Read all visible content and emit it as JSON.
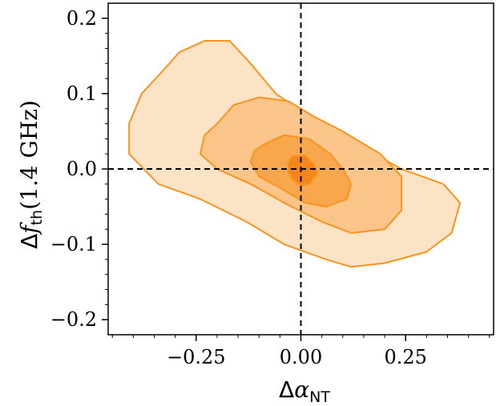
{
  "chart_data": {
    "type": "contour",
    "xlabel": {
      "prefix": "Δ",
      "symbol": "α",
      "subscript": "NT"
    },
    "ylabel": {
      "prefix": "Δ",
      "symbol": "f",
      "subscript": "th",
      "suffix": "(1.4 GHz)"
    },
    "xlim": [
      -0.46,
      0.46
    ],
    "ylim": [
      -0.22,
      0.22
    ],
    "xticks": [
      -0.25,
      0.0,
      0.25
    ],
    "xtick_labels": [
      "−0.25",
      "0.00",
      "0.25"
    ],
    "yticks": [
      -0.2,
      -0.1,
      0.0,
      0.1,
      0.2
    ],
    "ytick_labels": [
      "−0.2",
      "−0.1",
      "0.0",
      "0.1",
      "0.2"
    ],
    "reference_lines": {
      "x": 0.0,
      "y": 0.0,
      "style": "dashed"
    },
    "colors": {
      "line": "#f7941d",
      "fill_outer": "#fde3c6",
      "fill_mid": "#fbc58a",
      "fill_inner": "#f9a74d",
      "fill_core": "#f7861a",
      "refline": "#000000"
    },
    "contours": [
      {
        "level": 1,
        "points": [
          [
            -0.33,
            0.13
          ],
          [
            -0.29,
            0.155
          ],
          [
            -0.23,
            0.17
          ],
          [
            -0.17,
            0.17
          ],
          [
            -0.12,
            0.14
          ],
          [
            -0.06,
            0.1
          ],
          [
            0.02,
            0.07
          ],
          [
            0.11,
            0.04
          ],
          [
            0.24,
            0.0
          ],
          [
            0.34,
            -0.02
          ],
          [
            0.38,
            -0.045
          ],
          [
            0.36,
            -0.085
          ],
          [
            0.3,
            -0.11
          ],
          [
            0.2,
            -0.125
          ],
          [
            0.12,
            -0.13
          ],
          [
            0.06,
            -0.12
          ],
          [
            -0.04,
            -0.1
          ],
          [
            -0.13,
            -0.07
          ],
          [
            -0.24,
            -0.04
          ],
          [
            -0.34,
            -0.02
          ],
          [
            -0.41,
            0.02
          ],
          [
            -0.41,
            0.06
          ],
          [
            -0.38,
            0.1
          ]
        ]
      },
      {
        "level": 2,
        "points": [
          [
            -0.2,
            0.06
          ],
          [
            -0.16,
            0.085
          ],
          [
            -0.1,
            0.095
          ],
          [
            -0.03,
            0.09
          ],
          [
            0.03,
            0.07
          ],
          [
            0.1,
            0.05
          ],
          [
            0.19,
            0.02
          ],
          [
            0.24,
            -0.01
          ],
          [
            0.24,
            -0.055
          ],
          [
            0.2,
            -0.08
          ],
          [
            0.12,
            -0.085
          ],
          [
            0.05,
            -0.07
          ],
          [
            -0.04,
            -0.045
          ],
          [
            -0.12,
            -0.02
          ],
          [
            -0.2,
            0.0
          ],
          [
            -0.24,
            0.02
          ],
          [
            -0.23,
            0.045
          ]
        ]
      },
      {
        "level": 3,
        "points": [
          [
            -0.08,
            0.035
          ],
          [
            -0.04,
            0.045
          ],
          [
            0.02,
            0.04
          ],
          [
            0.07,
            0.02
          ],
          [
            0.1,
            -0.0
          ],
          [
            0.12,
            -0.02
          ],
          [
            0.11,
            -0.04
          ],
          [
            0.06,
            -0.05
          ],
          [
            0.01,
            -0.045
          ],
          [
            -0.05,
            -0.025
          ],
          [
            -0.1,
            -0.01
          ],
          [
            -0.12,
            0.01
          ],
          [
            -0.11,
            0.025
          ]
        ]
      },
      {
        "level": 4,
        "points": [
          [
            -0.02,
            0.017
          ],
          [
            0.01,
            0.018
          ],
          [
            0.03,
            0.007
          ],
          [
            0.04,
            -0.006
          ],
          [
            0.02,
            -0.02
          ],
          [
            0.0,
            -0.022
          ],
          [
            -0.02,
            -0.014
          ],
          [
            -0.03,
            -0.004
          ],
          [
            -0.03,
            0.008
          ]
        ]
      }
    ]
  }
}
